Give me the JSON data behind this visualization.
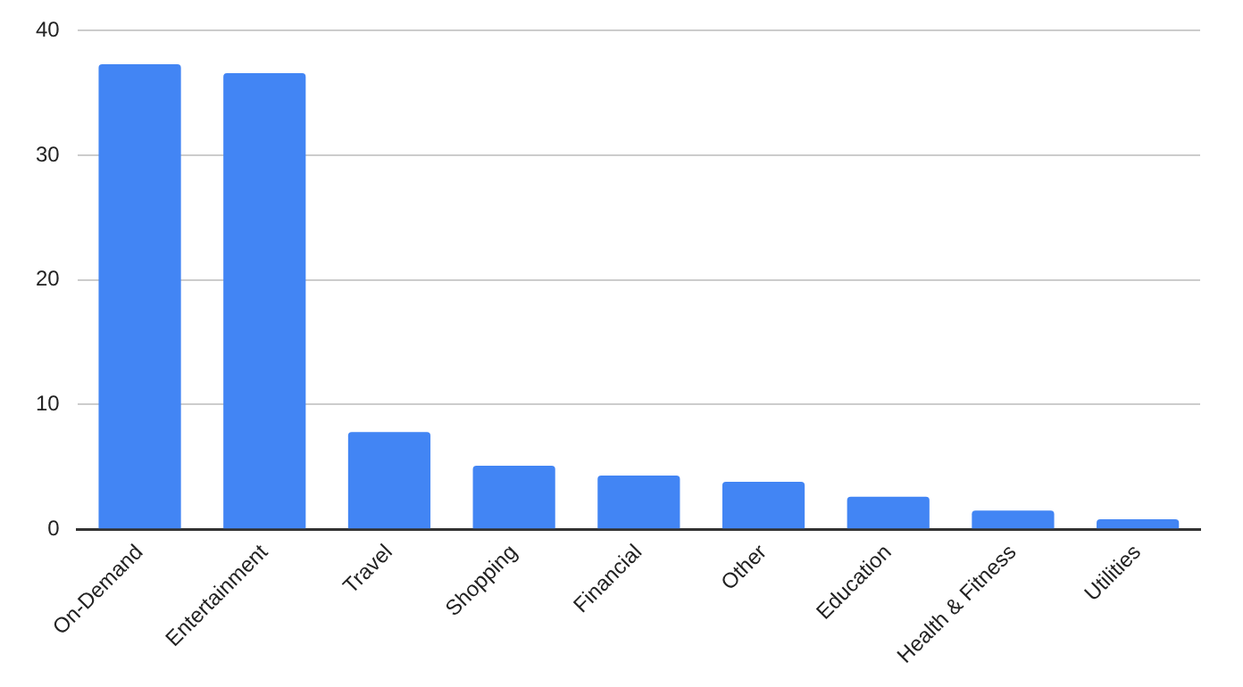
{
  "chart_data": {
    "type": "bar",
    "categories": [
      "On-Demand",
      "Entertainment",
      "Travel",
      "Shopping",
      "Financial",
      "Other",
      "Education",
      "Health & Fitness",
      "Utilities"
    ],
    "values": [
      37.3,
      36.6,
      7.8,
      5.1,
      4.3,
      3.8,
      2.6,
      1.5,
      0.8
    ],
    "color": "#4285f4",
    "ylim": [
      0,
      40
    ],
    "yticks": [
      0,
      10,
      20,
      30,
      40
    ],
    "grid": "y",
    "legend": false
  }
}
